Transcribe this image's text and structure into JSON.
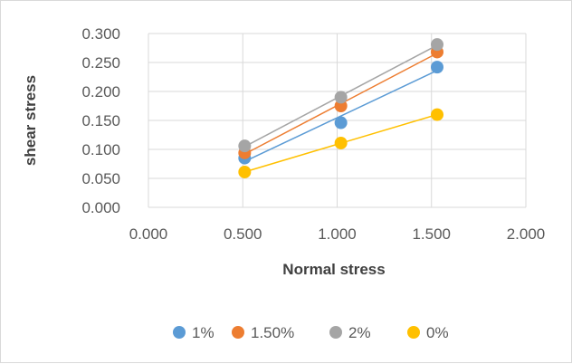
{
  "chart_data": {
    "type": "scatter",
    "xlabel": "Normal stress",
    "ylabel": "shear stress",
    "xlim": [
      0,
      2
    ],
    "ylim": [
      0,
      0.3
    ],
    "x_ticks": [
      "0.000",
      "0.500",
      "1.000",
      "1.500",
      "2.000"
    ],
    "y_ticks": [
      "0.000",
      "0.050",
      "0.100",
      "0.150",
      "0.200",
      "0.250",
      "0.300"
    ],
    "grid": true,
    "trendlines": true,
    "legend_position": "bottom",
    "series": [
      {
        "name": "1%",
        "color": "#5B9BD5",
        "x": [
          0.51,
          1.02,
          1.53
        ],
        "y": [
          0.085,
          0.146,
          0.242
        ]
      },
      {
        "name": "1.50%",
        "color": "#ED7D31",
        "x": [
          0.51,
          1.02,
          1.53
        ],
        "y": [
          0.094,
          0.175,
          0.268
        ]
      },
      {
        "name": "2%",
        "color": "#A5A5A5",
        "x": [
          0.51,
          1.02,
          1.53
        ],
        "y": [
          0.106,
          0.19,
          0.281
        ]
      },
      {
        "name": "0%",
        "color": "#FFC000",
        "x": [
          0.51,
          1.02,
          1.53
        ],
        "y": [
          0.061,
          0.111,
          0.16
        ]
      }
    ]
  }
}
